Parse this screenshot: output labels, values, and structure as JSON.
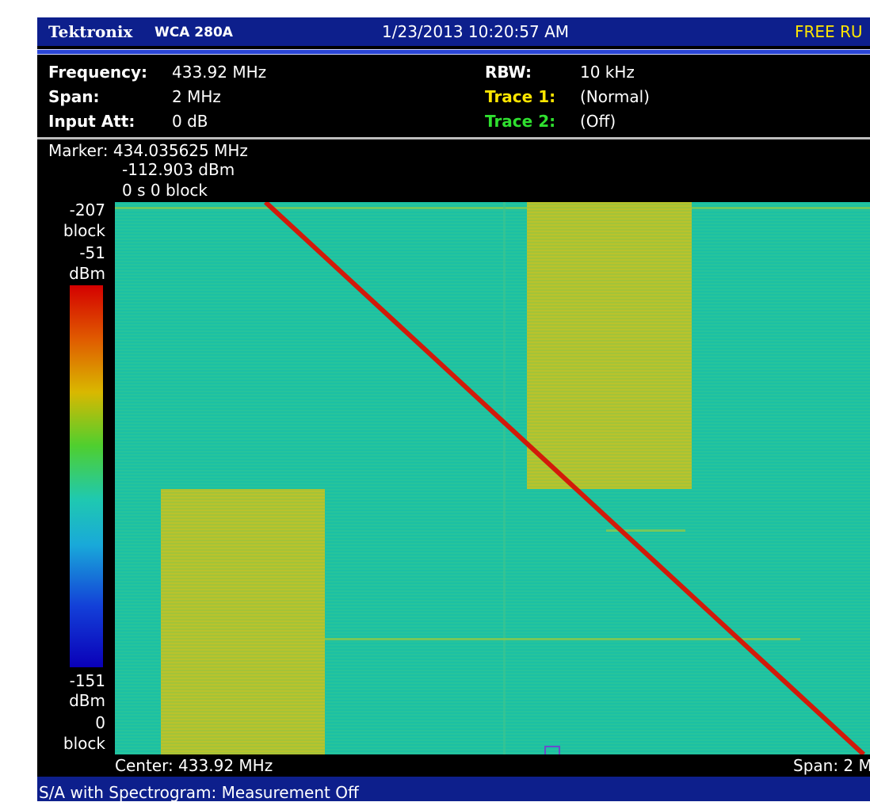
{
  "header": {
    "brand": "Tektronix",
    "model": "WCA 280A",
    "datetime": "1/23/2013 10:20:57 AM",
    "mode": "FREE RU"
  },
  "settings": {
    "left": [
      [
        "Frequency:",
        "433.92 MHz"
      ],
      [
        "Span:",
        "2 MHz"
      ],
      [
        "Input Att:",
        "0 dB"
      ]
    ],
    "right": [
      [
        "RBW:",
        "10 kHz"
      ],
      [
        "Trace 1:",
        "(Normal)"
      ],
      [
        "Trace 2:",
        "(Off)"
      ]
    ]
  },
  "marker": {
    "frequency": "Marker: 434.035625 MHz",
    "level": "-112.903 dBm",
    "time": "0 s  0 block"
  },
  "scale": {
    "top_block": "-207",
    "top_block_unit": "block",
    "top_level": "-51",
    "top_level_unit": "dBm",
    "bottom_level": "-151",
    "bottom_level_unit": "dBm",
    "bottom_block": "0",
    "bottom_block_unit": "block"
  },
  "footer": {
    "center": "Center: 433.92 MHz",
    "span": "Span: 2 M"
  },
  "status": "S/A with Spectrogram: Measurement Off"
}
